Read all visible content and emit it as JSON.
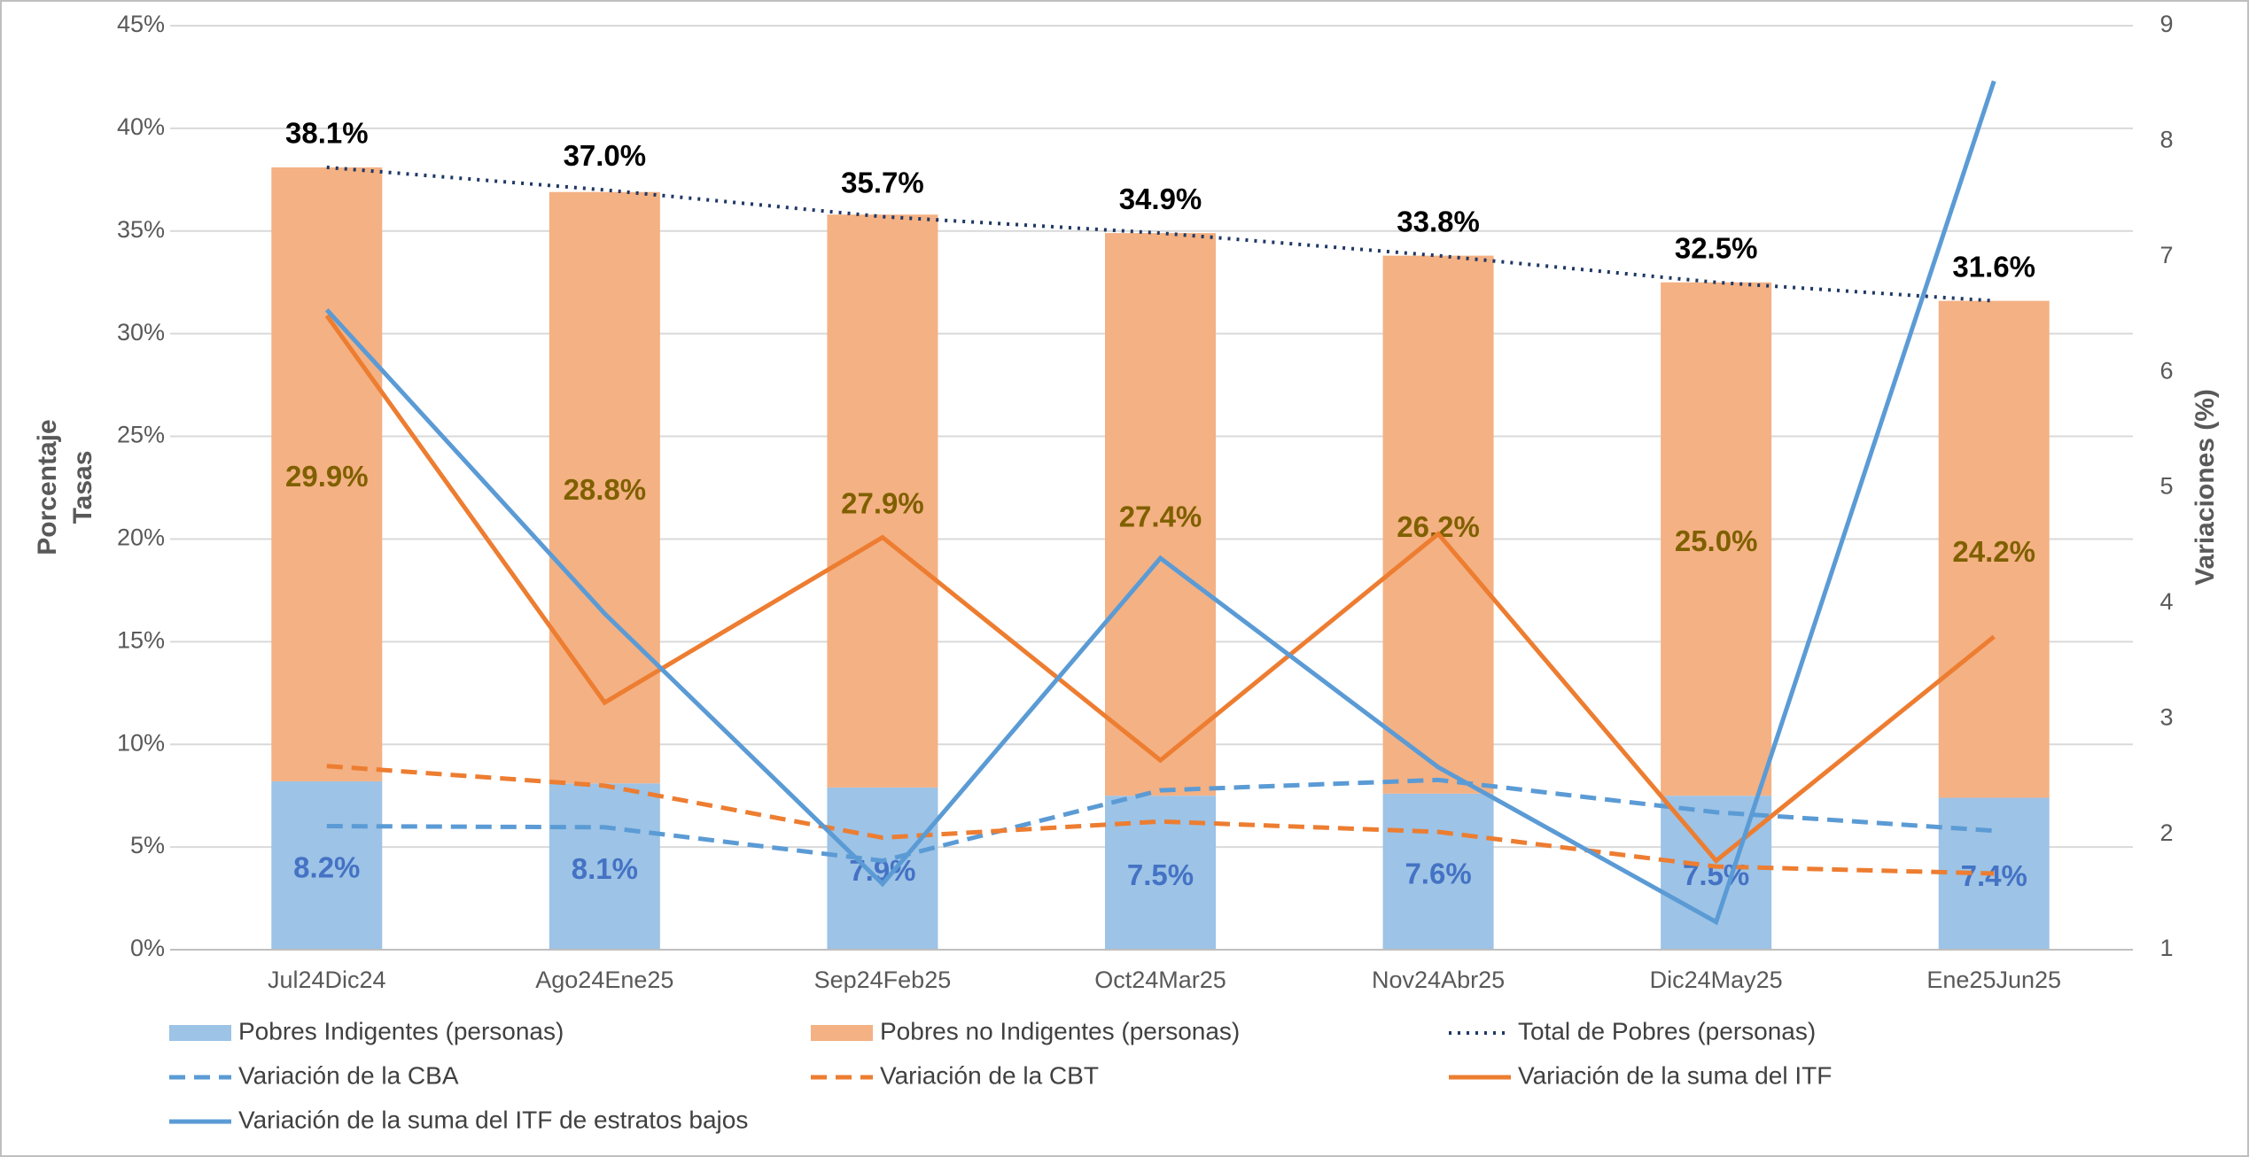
{
  "chart_data": {
    "type": "bar",
    "categories": [
      "Jul24Dic24",
      "Ago24Ene25",
      "Sep24Feb25",
      "Oct24Mar25",
      "Nov24Abr25",
      "Dic24May25",
      "Ene25Jun25"
    ],
    "ylabel": [
      "Porcentaje",
      "Tasas"
    ],
    "y2label": "Variaciones (%)",
    "ylim": [
      0,
      45
    ],
    "yticks": [
      {
        "value": 0,
        "label": "0%"
      },
      {
        "value": 5,
        "label": "5%"
      },
      {
        "value": 10,
        "label": "10%"
      },
      {
        "value": 15,
        "label": "15%"
      },
      {
        "value": 20,
        "label": "20%"
      },
      {
        "value": 25,
        "label": "25%"
      },
      {
        "value": 30,
        "label": "30%"
      },
      {
        "value": 35,
        "label": "35%"
      },
      {
        "value": 40,
        "label": "40%"
      },
      {
        "value": 45,
        "label": "45%"
      }
    ],
    "y2lim": [
      1,
      9
    ],
    "y2ticks": [
      1,
      2,
      3,
      4,
      5,
      6,
      7,
      8,
      9
    ],
    "grid": true,
    "legend": "bottom",
    "series": [
      {
        "name": "Pobres Indigentes (personas)",
        "kind": "bar",
        "color": "#9dc3e6",
        "label_color": "#4472c4",
        "values": [
          8.2,
          8.1,
          7.9,
          7.5,
          7.6,
          7.5,
          7.4
        ],
        "value_labels": [
          "8.2%",
          "8.1%",
          "7.9%",
          "7.5%",
          "7.6%",
          "7.5%",
          "7.4%"
        ]
      },
      {
        "name": "Pobres no Indigentes (personas)",
        "kind": "bar",
        "color": "#f4b183",
        "label_color": "#7f6000",
        "values": [
          29.9,
          28.8,
          27.9,
          27.4,
          26.2,
          25.0,
          24.2
        ],
        "value_labels": [
          "29.9%",
          "28.8%",
          "27.9%",
          "27.4%",
          "26.2%",
          "25.0%",
          "24.2%"
        ]
      },
      {
        "name": "Total de Pobres (personas)",
        "kind": "line",
        "dash": "dotted",
        "color": "#1f3864",
        "label_color": "#000000",
        "values": [
          38.1,
          37.0,
          35.7,
          34.9,
          33.8,
          32.5,
          31.6
        ],
        "value_labels": [
          "38.1%",
          "37.0%",
          "35.7%",
          "34.9%",
          "33.8%",
          "32.5%",
          "31.6%"
        ]
      },
      {
        "name": "Variación de la CBA",
        "kind": "line",
        "dash": "dashed",
        "axis": "y2",
        "color": "#5b9bd5",
        "values": [
          2.07,
          2.06,
          1.77,
          2.38,
          2.47,
          2.19,
          2.03
        ]
      },
      {
        "name": "Variación de la CBT",
        "kind": "line",
        "dash": "dashed",
        "axis": "y2",
        "color": "#ed7d31",
        "values": [
          2.59,
          2.42,
          1.97,
          2.11,
          2.02,
          1.72,
          1.66
        ]
      },
      {
        "name": "Variación de la suma del ITF",
        "kind": "line",
        "dash": "solid",
        "axis": "y2",
        "color": "#ed7d31",
        "values": [
          6.49,
          3.14,
          4.57,
          2.64,
          4.6,
          1.77,
          3.71
        ]
      },
      {
        "name": "Variación de la suma del ITF de estratos bajos",
        "kind": "line",
        "dash": "solid",
        "axis": "y2",
        "color": "#5b9bd5",
        "values": [
          6.54,
          3.91,
          1.57,
          4.39,
          2.58,
          1.24,
          8.52
        ]
      }
    ]
  }
}
